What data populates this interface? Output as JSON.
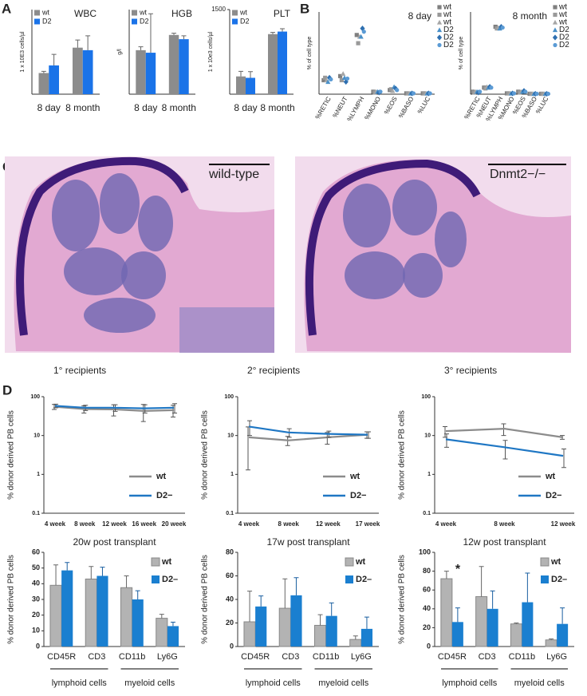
{
  "panels": [
    "A",
    "B",
    "C",
    "D"
  ],
  "histology": {
    "labels": [
      "wild-type",
      "Dnmt2−/−"
    ]
  },
  "chart_data": [
    {
      "type": "bar",
      "title": "WBC",
      "y_label": "1 x 10E3 cells/µl",
      "categories": [
        "8 day",
        "8 month"
      ],
      "ylim": [
        0,
        10
      ],
      "legend": "upper left",
      "series": [
        {
          "name": "wt",
          "color": "#8c8c8c",
          "values": [
            2.5,
            5.5
          ],
          "errors": [
            0.2,
            0.9
          ]
        },
        {
          "name": "D2",
          "color": "#1a73e8",
          "values": [
            3.4,
            5.2
          ],
          "errors": [
            1.3,
            1.7
          ]
        }
      ]
    },
    {
      "type": "bar",
      "title": "HGB",
      "y_label": "g/l",
      "categories": [
        "8 day",
        "8 month"
      ],
      "ylim": [
        0,
        10
      ],
      "legend": "upper left",
      "series": [
        {
          "name": "wt",
          "color": "#8c8c8c",
          "values": [
            5.2,
            7.0
          ],
          "errors": [
            0.4,
            0.2
          ]
        },
        {
          "name": "D2",
          "color": "#1a73e8",
          "values": [
            4.9,
            6.5
          ],
          "errors": [
            4.6,
            0.4
          ]
        }
      ]
    },
    {
      "type": "bar",
      "title": "PLT",
      "y_label": "1 x 10e3 cells/µl",
      "categories": [
        "8 day",
        "8 month"
      ],
      "ylim": [
        0,
        1500
      ],
      "yticks": [
        1500
      ],
      "legend": "upper left",
      "series": [
        {
          "name": "wt",
          "color": "#8c8c8c",
          "values": [
            315,
            1065
          ],
          "errors": [
            90,
            30
          ]
        },
        {
          "name": "D2",
          "color": "#1a73e8",
          "values": [
            290,
            1110
          ],
          "errors": [
            110,
            50
          ]
        }
      ]
    },
    {
      "type": "dot",
      "title": "8 day",
      "y_label": "% of cell type",
      "categories": [
        "%RETIC",
        "%NEUT",
        "%LYMPH",
        "%MONO",
        "%EOS",
        "%BASO",
        "%LUC"
      ],
      "ylim": [
        0,
        100
      ],
      "legend": "right",
      "series": [
        {
          "name": "wt",
          "color": "#7f7f7f",
          "marker": "square",
          "values": [
            17,
            22,
            72,
            3,
            5,
            1,
            1
          ]
        },
        {
          "name": "wt",
          "color": "#999999",
          "marker": "square",
          "values": [
            20,
            17,
            62,
            2,
            6,
            1,
            1
          ]
        },
        {
          "name": "wt",
          "color": "#a6a6a6",
          "marker": "triangle",
          "values": [
            17,
            25,
            70,
            3,
            4,
            1,
            1
          ]
        },
        {
          "name": "D2",
          "color": "#4a90c8",
          "marker": "triangle",
          "values": [
            15,
            20,
            70,
            3,
            9,
            1,
            1
          ]
        },
        {
          "name": "D2",
          "color": "#2e6fb0",
          "marker": "diamond",
          "values": [
            20,
            15,
            80,
            2,
            7,
            1,
            1
          ]
        },
        {
          "name": "D2",
          "color": "#5b9bd5",
          "marker": "circle",
          "values": [
            18,
            19,
            76,
            3,
            5,
            1,
            1
          ]
        }
      ]
    },
    {
      "type": "dot",
      "title": "8 month",
      "y_label": "% of cell type",
      "categories": [
        "%RETIC",
        "%NEUT",
        "%LYMPH",
        "%MONO",
        "%EOS",
        "%BASO",
        "%LUC"
      ],
      "ylim": [
        0,
        100
      ],
      "legend": "right",
      "series": [
        {
          "name": "wt",
          "color": "#7f7f7f",
          "marker": "square",
          "values": [
            3,
            8,
            82,
            1,
            3,
            0.5,
            0.5
          ]
        },
        {
          "name": "wt",
          "color": "#999999",
          "marker": "square",
          "values": [
            2,
            7,
            80,
            1,
            2,
            0.5,
            0.5
          ]
        },
        {
          "name": "wt",
          "color": "#a6a6a6",
          "marker": "triangle",
          "values": [
            3,
            9,
            81,
            1,
            3,
            0.5,
            0.5
          ]
        },
        {
          "name": "D2",
          "color": "#4a90c8",
          "marker": "triangle",
          "values": [
            3,
            8,
            80,
            1,
            3,
            0.5,
            0.5
          ]
        },
        {
          "name": "D2",
          "color": "#2e6fb0",
          "marker": "diamond",
          "values": [
            2,
            9,
            82,
            1,
            4,
            0.5,
            0.5
          ]
        },
        {
          "name": "D2",
          "color": "#5b9bd5",
          "marker": "circle",
          "values": [
            3,
            8,
            81,
            1,
            3,
            0.5,
            0.5
          ]
        }
      ]
    },
    {
      "type": "line",
      "title": "1° recipients",
      "y_label": "% donor derived PB cells",
      "categories": [
        "4 week",
        "8 week",
        "12 week",
        "16 week",
        "20 week"
      ],
      "yscale": "log",
      "ylim": [
        0.1,
        100
      ],
      "yticks": [
        0.1,
        1,
        10,
        100
      ],
      "legend": "lower right",
      "series": [
        {
          "name": "wt",
          "color": "#8c8c8c",
          "values": [
            55,
            48,
            47,
            43,
            45
          ],
          "errors": [
            8,
            10,
            15,
            20,
            15
          ]
        },
        {
          "name": "D2−",
          "color": "#1f77c4",
          "values": [
            58,
            52,
            52,
            50,
            52
          ],
          "errors": [
            6,
            8,
            10,
            12,
            14
          ]
        }
      ]
    },
    {
      "type": "line",
      "title": "2° recipients",
      "y_label": "% donor derived PB cells",
      "categories": [
        "4 week",
        "8 week",
        "12 week",
        "17 week"
      ],
      "yscale": "log",
      "ylim": [
        0.1,
        100
      ],
      "yticks": [
        0.1,
        1,
        10,
        100
      ],
      "legend": "lower right",
      "series": [
        {
          "name": "wt",
          "color": "#8c8c8c",
          "values": [
            9,
            7.5,
            9,
            10.5
          ],
          "errors": [
            7.7,
            2,
            3,
            2
          ]
        },
        {
          "name": "D2−",
          "color": "#1f77c4",
          "values": [
            17,
            12,
            11,
            10.5
          ],
          "errors": [
            7,
            3,
            2,
            2
          ]
        }
      ]
    },
    {
      "type": "line",
      "title": "3° recipients",
      "y_label": "% donor derived PB cells",
      "categories": [
        "4 week",
        "8 week",
        "12 week"
      ],
      "yscale": "log",
      "ylim": [
        0.1,
        100
      ],
      "yticks": [
        0.1,
        1,
        10,
        100
      ],
      "legend": "lower right",
      "series": [
        {
          "name": "wt",
          "color": "#8c8c8c",
          "values": [
            13,
            15,
            9
          ],
          "errors": [
            4,
            5,
            1
          ]
        },
        {
          "name": "D2−",
          "color": "#1f77c4",
          "values": [
            8,
            5,
            3
          ],
          "errors": [
            3,
            2.5,
            1.5
          ]
        }
      ]
    },
    {
      "type": "bar",
      "title": "20w post transplant",
      "y_label": "% donor derived PB cells",
      "categories": [
        "CD45R",
        "CD3",
        "CD11b",
        "Ly6G"
      ],
      "category_groups": [
        "lymphoid cells",
        "myeloid cells"
      ],
      "ylim": [
        0,
        60
      ],
      "yticks": [
        0,
        10,
        20,
        30,
        40,
        50,
        60
      ],
      "legend": "upper right",
      "series": [
        {
          "name": "wt",
          "color": "#b3b3b3",
          "values": [
            39,
            43,
            37.5,
            18
          ],
          "errors": [
            13,
            8,
            7.5,
            2.5
          ]
        },
        {
          "name": "D2–",
          "color": "#1a7fd0",
          "values": [
            48.5,
            45,
            30,
            13
          ],
          "errors": [
            5,
            5.5,
            5.5,
            2.5
          ]
        }
      ]
    },
    {
      "type": "bar",
      "title": "17w post transplant",
      "y_label": "% donor derived PB cells",
      "categories": [
        "CD45R",
        "CD3",
        "CD11b",
        "Ly6G"
      ],
      "category_groups": [
        "lymphoid cells",
        "myeloid cells"
      ],
      "ylim": [
        0,
        80
      ],
      "yticks": [
        0,
        20,
        40,
        60,
        80
      ],
      "legend": "upper right",
      "series": [
        {
          "name": "wt",
          "color": "#b3b3b3",
          "values": [
            21,
            32.5,
            18,
            6
          ],
          "errors": [
            26,
            25,
            9,
            3
          ]
        },
        {
          "name": "D2–",
          "color": "#1a7fd0",
          "values": [
            34,
            43.5,
            26,
            15
          ],
          "errors": [
            9,
            15,
            11,
            10
          ]
        }
      ]
    },
    {
      "type": "bar",
      "title": "12w post transplant",
      "y_label": "% donor derived PB cells",
      "categories": [
        "CD45R",
        "CD3",
        "CD11b",
        "Ly6G"
      ],
      "category_groups": [
        "lymphoid cells",
        "myeloid cells"
      ],
      "ylim": [
        0,
        100
      ],
      "yticks": [
        0,
        20,
        40,
        60,
        80,
        100
      ],
      "legend": "upper right",
      "annotation": "*",
      "series": [
        {
          "name": "wt",
          "color": "#b3b3b3",
          "values": [
            72,
            53,
            24,
            7
          ],
          "errors": [
            8,
            32,
            1,
            1
          ]
        },
        {
          "name": "D2–",
          "color": "#1a7fd0",
          "values": [
            26,
            40,
            47,
            24
          ],
          "errors": [
            15,
            19,
            31,
            17
          ]
        }
      ]
    }
  ]
}
